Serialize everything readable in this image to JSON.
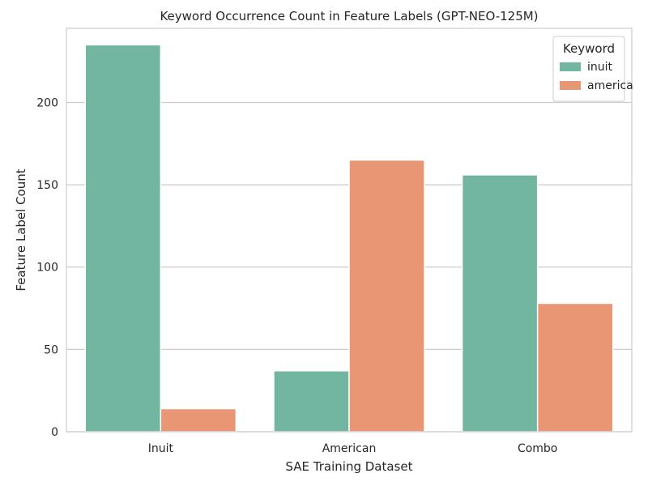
{
  "chart_data": {
    "type": "bar",
    "title": "Keyword Occurrence Count in Feature Labels (GPT-NEO-125M)",
    "xlabel": "SAE Training Dataset",
    "ylabel": "Feature Label Count",
    "categories": [
      "Inuit",
      "American",
      "Combo"
    ],
    "series": [
      {
        "name": "inuit",
        "color": "#72b6a1",
        "values": [
          235,
          37,
          156
        ]
      },
      {
        "name": "america",
        "color": "#e99675",
        "values": [
          14,
          165,
          78
        ]
      }
    ],
    "ylim": [
      0,
      245
    ],
    "yticks": [
      0,
      50,
      100,
      150,
      200
    ],
    "grid": true,
    "legend": {
      "title": "Keyword",
      "position": "top-right"
    }
  }
}
